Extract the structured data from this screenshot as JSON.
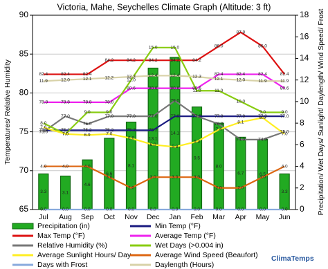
{
  "chart_data": {
    "type": "combo",
    "title": "Victoria, Mahe, Seychelles Climate Graph (Altitude: 3 ft)",
    "y_label": "Temperatures/ Relative Humidity",
    "y2_label": "Precipitation/ Wet Days/ Sunlight/ Daylength/ Wind Speed/ Frost",
    "brand": "ClimaTemps",
    "categories": [
      "Jul",
      "Aug",
      "Sep",
      "Oct",
      "Nov",
      "Dec",
      "Jan",
      "Feb",
      "Mar",
      "Apr",
      "May",
      "Jun"
    ],
    "ylim": [
      65,
      90
    ],
    "yticks": [
      65,
      70,
      75,
      80,
      85,
      90
    ],
    "y2lim": [
      0,
      18
    ],
    "y2ticks": [
      0,
      2,
      4,
      6,
      8,
      10,
      12,
      14,
      16,
      18
    ],
    "grid": true,
    "series": [
      {
        "name": "Precipitation (in)",
        "type": "bar",
        "axis": "y2",
        "color": "#22aa22",
        "values": [
          3.3,
          3.1,
          4.6,
          6.6,
          8.1,
          13.1,
          14.1,
          9.5,
          8.0,
          6.7,
          6.5,
          3.3
        ],
        "value_labels": [
          "3.3",
          "3.1",
          "4.6",
          "6.6",
          "8.1",
          "13.1",
          "14.1",
          "9.5",
          "8.0",
          "6.7",
          "6.5",
          "3.3"
        ]
      },
      {
        "name": "Min Temp (°F)",
        "type": "line",
        "color": "#1a1a80",
        "values": [
          75.2,
          75.2,
          75.2,
          75.2,
          75.2,
          75.2,
          77.0,
          77.0,
          77.0,
          77.0,
          77.0,
          77.0
        ],
        "value_labels": [
          "75.2",
          "75.2",
          "75.2",
          "75.2",
          "75.2",
          "75.2",
          "77.0",
          "77.0",
          "77.0",
          "77.0",
          "77.0",
          "77.0"
        ]
      },
      {
        "name": "Max Temp (°F)",
        "type": "line",
        "color": "#dd1111",
        "values": [
          82.4,
          82.4,
          82.4,
          84.2,
          84.2,
          84.2,
          84.2,
          84.2,
          86.0,
          87.8,
          86.0,
          82.4
        ],
        "value_labels": [
          "82.4",
          "82.4",
          "82.4",
          "84.2",
          "84.2",
          "84.2",
          "84.2",
          "84.2",
          "86.0",
          "87.8",
          "86.0",
          "82.4"
        ]
      },
      {
        "name": "Average Temp (°F)",
        "type": "line",
        "color": "#ee22ee",
        "values": [
          78.8,
          78.8,
          78.8,
          78.8,
          80.6,
          80.6,
          80.6,
          80.6,
          82.4,
          82.4,
          82.4,
          80.6
        ],
        "value_labels": [
          "78.8",
          "78.8",
          "78.8",
          "78.8",
          "80.6",
          "80.6",
          "80.6",
          "80.6",
          "82.4",
          "82.4",
          "82.4",
          "80.6"
        ]
      },
      {
        "name": "Relative Humidity (%)",
        "type": "line",
        "color": "#777777",
        "values": [
          75.0,
          77.0,
          76.0,
          77.0,
          77.0,
          77.0,
          79.0,
          77.0,
          76.0,
          74.0,
          74.0,
          75.0
        ],
        "value_labels": [
          "75.0",
          "77.0",
          "76.0",
          "77.0",
          "77.0",
          "77.0",
          "79.0",
          "77.0",
          "76.0",
          "74.0",
          "74.0",
          "75.0"
        ]
      },
      {
        "name": "Wet Days (>0.004 in)",
        "type": "line",
        "axis": "y2",
        "color": "#88cc11",
        "values": [
          8.0,
          7.0,
          9.0,
          9.0,
          12.0,
          15.0,
          15.0,
          11.0,
          11.0,
          10.0,
          9.0,
          9.0
        ],
        "value_labels": [
          "8.0",
          "7.0",
          "9.0",
          "9.0",
          "12.0",
          "15.0",
          "15.0",
          "11.0",
          "11.0",
          "10.0",
          "9.0",
          "9.0"
        ]
      },
      {
        "name": "Average Sunlight Hours/ Day",
        "type": "line",
        "axis": "y2",
        "color": "#ffee22",
        "values": [
          7.6,
          7.0,
          6.9,
          7.0,
          6.6,
          6.0,
          5.8,
          6.3,
          7.4,
          8.1,
          8.5,
          7.0
        ],
        "value_labels": [
          "7.6",
          "7.0",
          "6.9",
          "7.0",
          "6.6",
          "6.0",
          "5.8",
          "6.3",
          "7.4",
          "8.1",
          "8.5",
          "7.0"
        ]
      },
      {
        "name": "Average Wind Speed (Beaufort)",
        "type": "line",
        "axis": "y2",
        "color": "#dd6611",
        "values": [
          4.0,
          4.0,
          4.0,
          3.0,
          2.0,
          3.0,
          3.0,
          3.0,
          2.0,
          2.0,
          3.0,
          4.0
        ],
        "value_labels": [
          "4.0",
          "4.0",
          "4.0",
          "3.0",
          "2.0",
          "3.0",
          "3.0",
          "3.0",
          "2.0",
          "2.0",
          "3.0",
          "4.0"
        ]
      },
      {
        "name": "Days with Frost",
        "type": "line",
        "axis": "y2",
        "color": "#88aadd",
        "values": [
          0,
          0,
          0,
          0,
          0,
          0,
          0,
          0,
          0,
          0,
          0,
          0
        ],
        "value_labels": [
          "0.0",
          "0.0",
          "0.0",
          "0.0",
          "0.0",
          "0.0",
          "0.0",
          "0.0",
          "0.0",
          "0.0",
          "0.0",
          "0.0"
        ]
      },
      {
        "name": "Daylength (Hours)",
        "type": "line",
        "axis": "y2",
        "color": "#d8d2a8",
        "values": [
          11.9,
          12.0,
          12.1,
          12.2,
          12.3,
          12.4,
          12.4,
          12.3,
          12.1,
          12.0,
          11.9,
          11.9
        ],
        "value_labels": [
          "11.9",
          "12.0",
          "12.1",
          "12.2",
          "12.3",
          "12.4",
          "12.4",
          "12.3",
          "12.1",
          "12.0",
          "11.9",
          "11.9"
        ]
      }
    ]
  }
}
